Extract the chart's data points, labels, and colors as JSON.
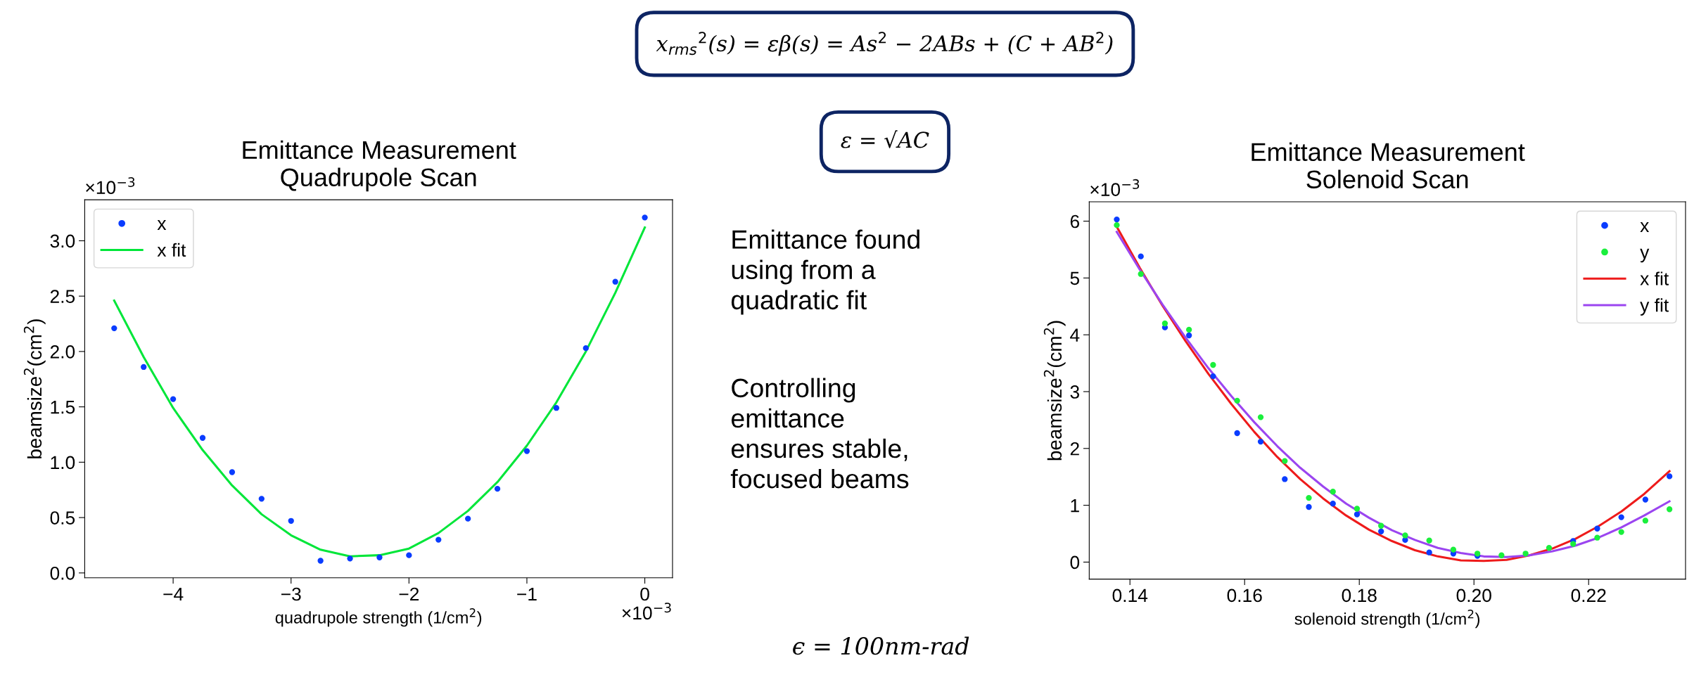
{
  "chart_data": [
    {
      "type": "scatter",
      "title": "Emittance Measurement\nQuadrupole Scan",
      "xlabel": "quadrupole strength (1/cm$^{2}$)",
      "ylabel": "beamsize$^{2}$(cm$^{2}$)",
      "annotations": [
        "×10$^{−3}$",
        "×10$^{−3}$"
      ],
      "xlim": [
        -4.75,
        0.235
      ],
      "ylim": [
        -0.044,
        3.37
      ],
      "xticks": [
        -4,
        -3,
        -2,
        -1,
        0
      ],
      "yticks": [
        {
          "value": 0,
          "label": "0.0"
        },
        0.5,
        {
          "value": 1,
          "label": "1.0"
        },
        1.5,
        {
          "value": 2,
          "label": "2.0"
        },
        2.5,
        {
          "value": 3,
          "label": "3.0"
        }
      ],
      "legend": "top left",
      "series": [
        {
          "name": "x",
          "type": "scatter",
          "marker": "circle",
          "color": "#0a3cff",
          "x": [
            -4.5,
            -4.25,
            -4.0,
            -3.75,
            -3.5,
            -3.25,
            -3.0,
            -2.75,
            -2.5,
            -2.25,
            -2.0,
            -1.75,
            -1.5,
            -1.25,
            -1.0,
            -0.75,
            -0.5,
            -0.25,
            0
          ],
          "values": [
            2.21,
            1.86,
            1.57,
            1.22,
            0.91,
            0.67,
            0.47,
            0.11,
            0.13,
            0.14,
            0.16,
            0.3,
            0.49,
            0.76,
            1.1,
            1.49,
            2.03,
            2.63,
            3.21
          ]
        },
        {
          "name": "x fit",
          "type": "line",
          "color": "#00e639",
          "x": [
            -4.5,
            -4.25,
            -4.0,
            -3.75,
            -3.5,
            -3.25,
            -3.0,
            -2.75,
            -2.5,
            -2.25,
            -2.0,
            -1.75,
            -1.5,
            -1.25,
            -1.0,
            -0.75,
            -0.5,
            -0.25,
            0
          ],
          "values": [
            2.46,
            1.95,
            1.49,
            1.11,
            0.79,
            0.53,
            0.34,
            0.21,
            0.15,
            0.16,
            0.22,
            0.36,
            0.56,
            0.82,
            1.15,
            1.54,
            2.0,
            2.53,
            3.12
          ]
        }
      ]
    },
    {
      "type": "other",
      "annotations": [
        "x$_{rms}$$^{2}$(s) = εβ(s) = As$^{2}$ − 2ABs + (C + AB$^{2}$)",
        "ε = √AC",
        "Emittance found\nusing from a\nquadratic fit",
        "Controlling\nemittance\nensures stable,\nfocused beams",
        "ϵ = 100nm-rad"
      ]
    },
    {
      "type": "scatter",
      "title": "Emittance Measurement\nSolenoid Scan",
      "xlabel": "solenoid strength (1/cm$^{2}$)",
      "ylabel": "beamsize$^{2}$(cm$^{2}$)",
      "annotations": [
        "×10$^{−3}$"
      ],
      "xlim": [
        0.1329,
        0.2369
      ],
      "ylim": [
        -0.3,
        6.34
      ],
      "xticks": [
        0.14,
        0.16,
        0.18,
        {
          "value": 0.2,
          "label": "0.20"
        },
        0.22
      ],
      "yticks": [
        0,
        1,
        2,
        3,
        4,
        5,
        6
      ],
      "legend": "top right",
      "series": [
        {
          "name": "x",
          "type": "scatter",
          "marker": "circle",
          "color": "#0a3cff",
          "x": [
            0.1377,
            0.1419,
            0.1461,
            0.1503,
            0.1545,
            0.1587,
            0.1628,
            0.167,
            0.1712,
            0.1754,
            0.1796,
            0.1838,
            0.188,
            0.1922,
            0.1964,
            0.2006,
            0.2048,
            0.209,
            0.2131,
            0.2173,
            0.2215,
            0.2257,
            0.2299,
            0.2341
          ],
          "values": [
            6.03,
            5.38,
            4.13,
            3.99,
            3.27,
            2.27,
            2.12,
            1.46,
            0.97,
            1.03,
            0.84,
            0.54,
            0.39,
            0.17,
            0.15,
            0.11,
            null,
            null,
            null,
            0.37,
            0.59,
            0.79,
            1.1,
            1.51
          ]
        },
        {
          "name": "y",
          "type": "scatter",
          "marker": "circle",
          "color": "#1aef3c",
          "x": [
            0.1377,
            0.1419,
            0.1461,
            0.1503,
            0.1545,
            0.1587,
            0.1628,
            0.167,
            0.1712,
            0.1754,
            0.1796,
            0.1838,
            0.188,
            0.1922,
            0.1964,
            0.2006,
            0.2048,
            0.209,
            0.2131,
            0.2173,
            0.2215,
            0.2257,
            0.2299,
            0.2341
          ],
          "values": [
            5.93,
            5.07,
            4.2,
            4.09,
            3.47,
            2.84,
            2.55,
            1.78,
            1.13,
            1.24,
            0.94,
            0.64,
            0.47,
            0.38,
            0.22,
            0.15,
            0.12,
            0.15,
            0.25,
            0.32,
            0.43,
            0.53,
            0.73,
            0.93
          ]
        },
        {
          "name": "x fit",
          "type": "line",
          "color": "#ee1b1b",
          "x": [
            0.1377,
            0.1417,
            0.1457,
            0.1497,
            0.1537,
            0.1577,
            0.1617,
            0.1657,
            0.1697,
            0.1737,
            0.1777,
            0.1817,
            0.1857,
            0.1897,
            0.1937,
            0.1977,
            0.2017,
            0.2057,
            0.2097,
            0.2137,
            0.2177,
            0.2217,
            0.2257,
            0.2297,
            0.2341
          ],
          "values": [
            5.9,
            5.18,
            4.51,
            3.89,
            3.31,
            2.78,
            2.29,
            1.85,
            1.46,
            1.12,
            0.82,
            0.57,
            0.37,
            0.21,
            0.1,
            0.03,
            0.02,
            0.04,
            0.12,
            0.24,
            0.41,
            0.63,
            0.89,
            1.2,
            1.6
          ]
        },
        {
          "name": "y fit",
          "type": "line",
          "color": "#9b45f0",
          "x": [
            0.1377,
            0.1417,
            0.1457,
            0.1497,
            0.1537,
            0.1577,
            0.1617,
            0.1657,
            0.1697,
            0.1737,
            0.1777,
            0.1817,
            0.1857,
            0.1897,
            0.1937,
            0.1977,
            0.2017,
            0.2057,
            0.2097,
            0.2137,
            0.2177,
            0.2217,
            0.2257,
            0.2297,
            0.2341
          ],
          "values": [
            5.81,
            5.15,
            4.53,
            3.95,
            3.41,
            2.92,
            2.46,
            2.04,
            1.66,
            1.33,
            1.03,
            0.78,
            0.56,
            0.39,
            0.25,
            0.16,
            0.1,
            0.09,
            0.12,
            0.19,
            0.29,
            0.43,
            0.61,
            0.82,
            1.07
          ]
        }
      ]
    }
  ]
}
